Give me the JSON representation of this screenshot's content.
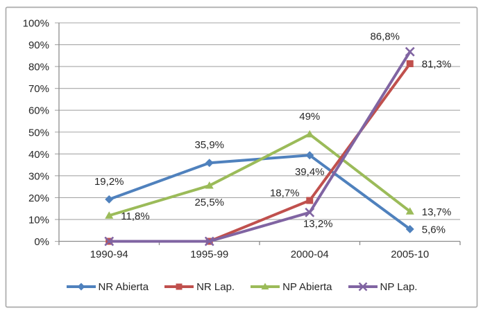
{
  "window": {
    "background": "#ffffff",
    "frame_border_color": "#ababab"
  },
  "chart_data": {
    "type": "line",
    "title": "",
    "categories": [
      "1990-94",
      "1995-99",
      "2000-04",
      "2005-10"
    ],
    "series": [
      {
        "name": "NR Abierta",
        "color": "#4F81BD",
        "marker": "diamond",
        "values": [
          19.2,
          35.9,
          39.4,
          5.6
        ],
        "labels": [
          "19,2%",
          "35,9%",
          "39,4%",
          "5,6%"
        ],
        "label_placements": [
          "above",
          "above",
          "below",
          "right"
        ]
      },
      {
        "name": "NP Abierta",
        "color": "#9BBB59",
        "marker": "triangle",
        "values": [
          11.8,
          25.5,
          49,
          13.7
        ],
        "labels": [
          "11,8%",
          "25,5%",
          "49%",
          "13,7%"
        ],
        "label_placements": [
          "right",
          "below",
          "above",
          "right"
        ]
      },
      {
        "name": "NR Lap.",
        "color": "#C0504D",
        "marker": "square",
        "values": [
          0,
          0,
          18.7,
          81.3
        ],
        "labels": [
          "",
          "",
          "18,7%",
          "81,3%"
        ],
        "label_placements": [
          "",
          "",
          "left-above",
          "right"
        ]
      },
      {
        "name": "NP Lap.",
        "color": "#8064A2",
        "marker": "x",
        "values": [
          0,
          0,
          13.2,
          86.8
        ],
        "labels": [
          "",
          "",
          "13,2%",
          "86,8%"
        ],
        "label_placements": [
          "",
          "",
          "below-right",
          "above-left"
        ]
      }
    ],
    "legend_order": [
      "NR Abierta",
      "NR Lap.",
      "NP Abierta",
      "NP Lap."
    ],
    "y_axis": {
      "min": 0,
      "max": 100,
      "step": 10,
      "tick_labels": [
        "0%",
        "10%",
        "20%",
        "30%",
        "40%",
        "50%",
        "60%",
        "70%",
        "80%",
        "90%",
        "100%"
      ]
    },
    "grid": true,
    "legend_position": "bottom",
    "colors": {
      "gridline": "#A6A6A6",
      "axis": "#8C8C8C",
      "text": "#262626"
    }
  }
}
